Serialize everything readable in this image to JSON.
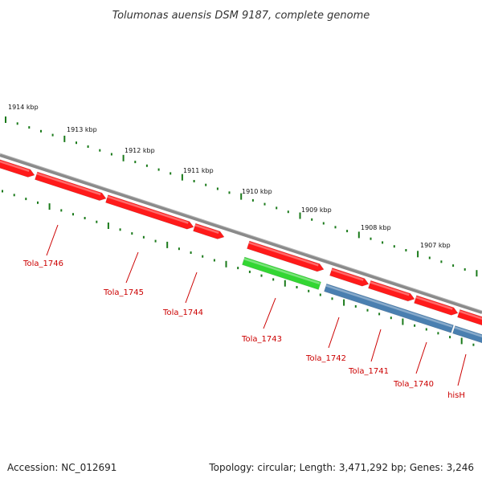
{
  "title": "Tolumonas auensis DSM 9187, complete genome",
  "footer": {
    "accession": "Accession: NC_012691",
    "summary": "Topology: circular; Length: 3,471,292 bp; Genes: 3,246"
  },
  "colors": {
    "backbone": "#8a8a8a",
    "gene_red": "#ff1a1a",
    "gene_green": "#33d633",
    "gene_blue": "#4a7fb0",
    "tick_green": "#1a7a1a",
    "label_red": "#cc0000"
  },
  "chart_data": {
    "type": "genome-map",
    "kbp_ticks": [
      "1914 kbp",
      "1913 kbp",
      "1912 kbp",
      "1911 kbp",
      "1910 kbp",
      "1909 kbp",
      "1908 kbp",
      "1907 kbp"
    ],
    "genes": [
      {
        "name": "",
        "type": "CDS",
        "strand": "+"
      },
      {
        "name": "Tola_1746",
        "type": "CDS",
        "strand": "+"
      },
      {
        "name": "Tola_1745",
        "type": "CDS",
        "strand": "+"
      },
      {
        "name": "Tola_1744",
        "type": "CDS",
        "strand": "+"
      },
      {
        "name": "Tola_1743",
        "type": "CDS",
        "strand": "+"
      },
      {
        "name": "",
        "type": "rRNA",
        "strand": "+"
      },
      {
        "name": "Tola_1742",
        "type": "CDS",
        "strand": "+"
      },
      {
        "name": "Tola_1741",
        "type": "CDS",
        "strand": "+"
      },
      {
        "name": "Tola_1740",
        "type": "CDS",
        "strand": "+"
      },
      {
        "name": "hisH",
        "type": "CDS",
        "strand": "+"
      },
      {
        "name": "",
        "type": "operon",
        "strand": "+"
      },
      {
        "name": "",
        "type": "operon",
        "strand": "+"
      }
    ]
  }
}
